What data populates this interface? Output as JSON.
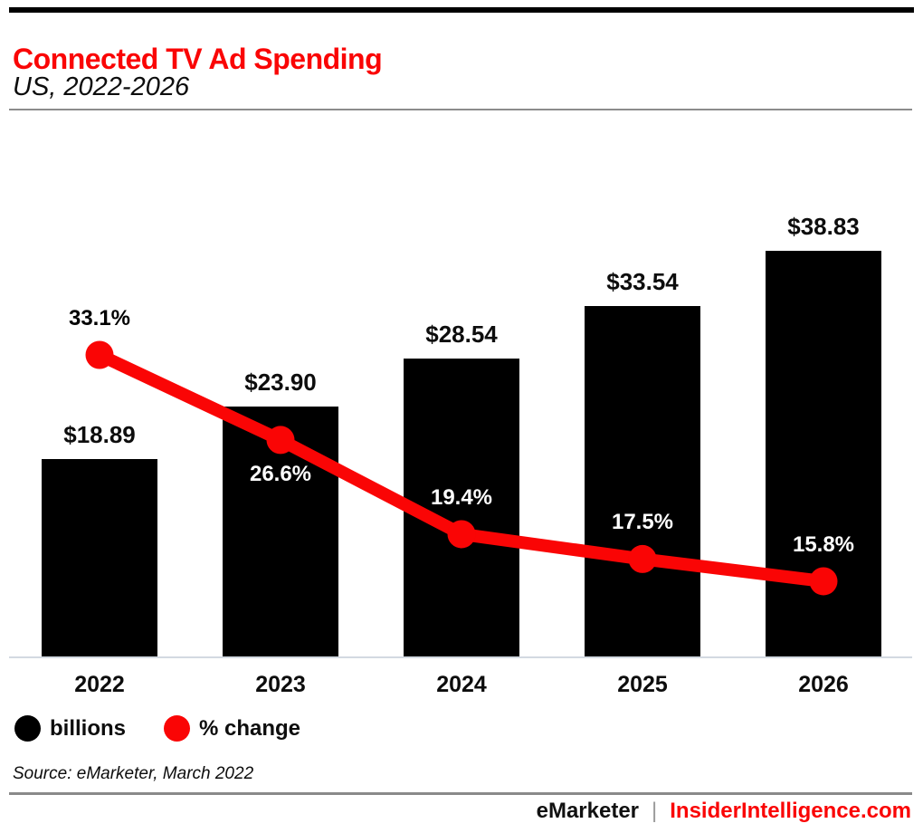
{
  "header": {
    "title": "Connected TV Ad Spending",
    "subtitle": "US, 2022-2026"
  },
  "chart_data": {
    "type": "bar",
    "title": "Connected TV Ad Spending",
    "subtitle": "US, 2022-2026",
    "categories": [
      "2022",
      "2023",
      "2024",
      "2025",
      "2026"
    ],
    "series": [
      {
        "name": "billions",
        "type": "bar",
        "values": [
          18.89,
          23.9,
          28.54,
          33.54,
          38.83
        ],
        "labels": [
          "$18.89",
          "$23.90",
          "$28.54",
          "$33.54",
          "$38.83"
        ],
        "color": "#000000"
      },
      {
        "name": "% change",
        "type": "line",
        "values": [
          33.1,
          26.6,
          19.4,
          17.5,
          15.8
        ],
        "labels": [
          "33.1%",
          "26.6%",
          "19.4%",
          "17.5%",
          "15.8%"
        ],
        "label_colors": [
          "#000000",
          "#ffffff",
          "#ffffff",
          "#ffffff",
          "#ffffff"
        ],
        "label_side": [
          "above",
          "below",
          "above",
          "above",
          "above"
        ],
        "color": "#fa0505"
      }
    ],
    "legend": [
      {
        "label": "billions",
        "color": "#000000"
      },
      {
        "label": "% change",
        "color": "#fa0505"
      }
    ],
    "legend_position": "bottom-left",
    "grid": false,
    "xlabel": "",
    "ylabel": ""
  },
  "source": {
    "text": "Source: eMarketer, March 2022"
  },
  "footer": {
    "brand_left": "eMarketer",
    "separator": "|",
    "brand_right": "InsiderIntelligence.com"
  },
  "colors": {
    "accent_red": "#fa0505",
    "bar_black": "#000000",
    "axis_line": "#d3d9e1",
    "divider_gray": "#8c8c8c",
    "white_label": "#ffffff"
  }
}
